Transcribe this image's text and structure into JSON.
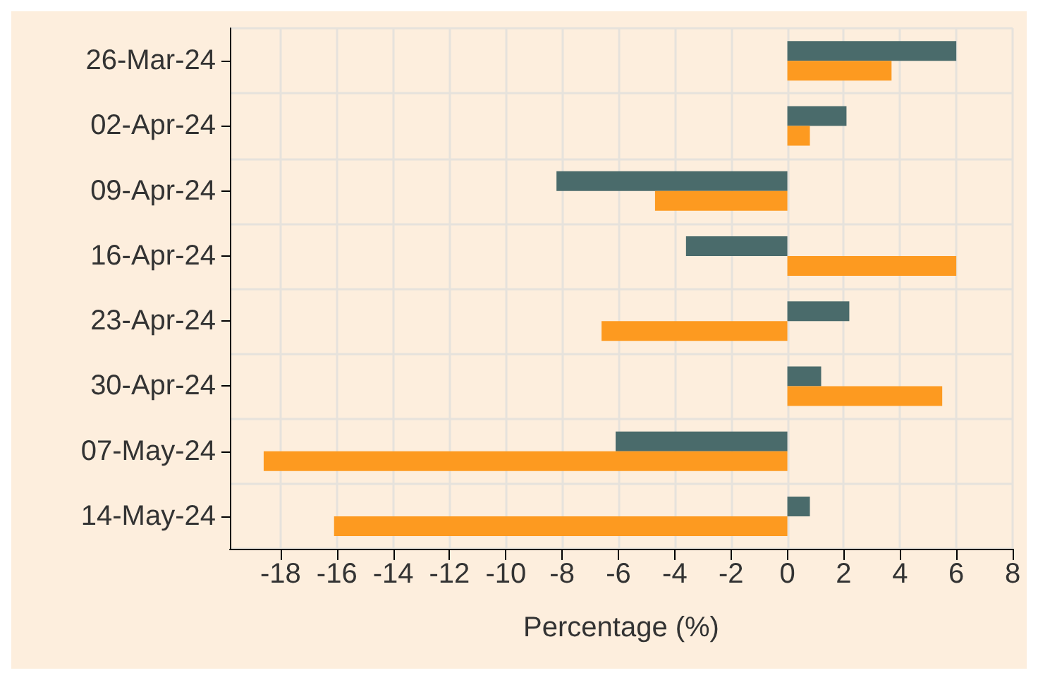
{
  "chart_data": {
    "type": "bar",
    "orientation": "horizontal",
    "xlabel": "Percentage (%)",
    "categories": [
      "26-Mar-24",
      "02-Apr-24",
      "09-Apr-24",
      "16-Apr-24",
      "23-Apr-24",
      "30-Apr-24",
      "07-May-24",
      "14-May-24"
    ],
    "series": [
      {
        "color": "#4a6b6b",
        "values": [
          6.0,
          2.1,
          -8.2,
          -3.6,
          2.2,
          1.2,
          -6.1,
          0.8
        ]
      },
      {
        "color": "#fd9a20",
        "values": [
          3.7,
          0.8,
          -4.7,
          6.0,
          -6.6,
          5.5,
          -18.6,
          -16.1
        ]
      }
    ],
    "xlim": [
      -19.8,
      8
    ],
    "xticks": [
      -18,
      -16,
      -14,
      -12,
      -10,
      -8,
      -6,
      -4,
      -2,
      0,
      2,
      4,
      6,
      8
    ],
    "grid": true
  }
}
